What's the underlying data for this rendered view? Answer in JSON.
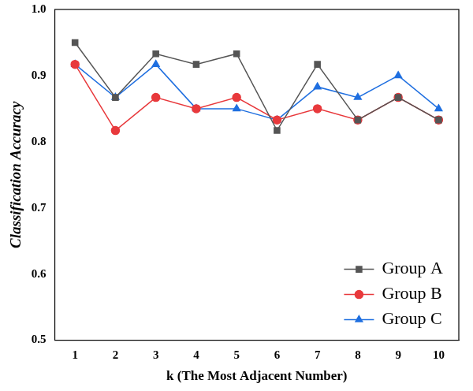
{
  "chart_data": {
    "type": "line",
    "x_label": "k (The Most Adjacent Number)",
    "y_label": "Classification Accuracy",
    "categories": [
      "1",
      "2",
      "3",
      "4",
      "5",
      "6",
      "7",
      "8",
      "9",
      "10"
    ],
    "series": [
      {
        "name": "Group A",
        "color": "#555555",
        "marker": "square",
        "values": [
          0.95,
          0.867,
          0.933,
          0.917,
          0.933,
          0.817,
          0.917,
          0.833,
          0.867,
          0.833
        ]
      },
      {
        "name": "Group B",
        "color": "#e8393c",
        "marker": "circle",
        "values": [
          0.917,
          0.817,
          0.867,
          0.85,
          0.867,
          0.833,
          0.85,
          0.833,
          0.867,
          0.833
        ]
      },
      {
        "name": "Group C",
        "color": "#1f6fe0",
        "marker": "triangle",
        "values": [
          0.917,
          0.867,
          0.917,
          0.85,
          0.85,
          0.833,
          0.883,
          0.867,
          0.9,
          0.85
        ]
      }
    ],
    "ylim": [
      0.5,
      1
    ],
    "yticks": [
      0.5,
      0.6,
      0.7,
      0.8,
      0.9,
      {
        "value": 1,
        "label": "1.0"
      }
    ],
    "grid": false,
    "legend": "lower right"
  }
}
